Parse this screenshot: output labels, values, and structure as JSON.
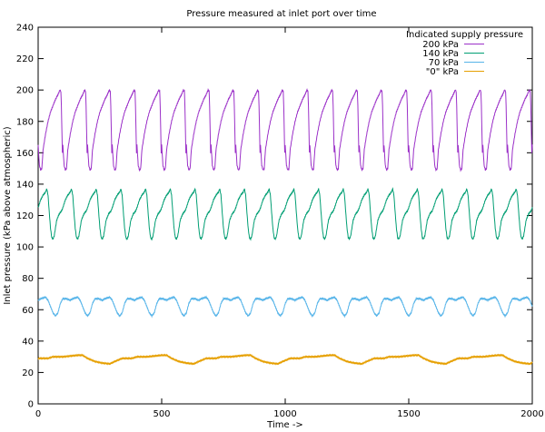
{
  "chart_data": {
    "type": "line",
    "title": "Pressure measured at inlet port over time",
    "xlabel": "Time ->",
    "ylabel": "Inlet pressure (kPa above atmospheric)",
    "xlim": [
      0,
      2000
    ],
    "ylim": [
      0,
      240
    ],
    "xticks": [
      0,
      500,
      1000,
      1500,
      2000
    ],
    "yticks": [
      0,
      20,
      40,
      60,
      80,
      100,
      120,
      140,
      160,
      180,
      200,
      220,
      240
    ],
    "grid": false,
    "legend": {
      "title": "Indicated supply pressure",
      "placement": "top-right"
    },
    "series": [
      {
        "name": "200 kPa",
        "color": "#9b30c8",
        "period": 100,
        "phase": 0,
        "points": [
          [
            0,
            165
          ],
          [
            5,
            152
          ],
          [
            10,
            149
          ],
          [
            15,
            150
          ],
          [
            20,
            162
          ],
          [
            30,
            172
          ],
          [
            40,
            180
          ],
          [
            50,
            186
          ],
          [
            60,
            190
          ],
          [
            70,
            194
          ],
          [
            80,
            197
          ],
          [
            88,
            200
          ],
          [
            92,
            199
          ],
          [
            94,
            190
          ],
          [
            96,
            175
          ],
          [
            98,
            160
          ],
          [
            100,
            165
          ]
        ]
      },
      {
        "name": "140 kPa",
        "color": "#009e73",
        "period": 100,
        "phase": 0,
        "points": [
          [
            0,
            125
          ],
          [
            10,
            130
          ],
          [
            20,
            133
          ],
          [
            30,
            135
          ],
          [
            35,
            137
          ],
          [
            40,
            133
          ],
          [
            45,
            122
          ],
          [
            50,
            112
          ],
          [
            55,
            106
          ],
          [
            60,
            105
          ],
          [
            65,
            107
          ],
          [
            75,
            117
          ],
          [
            85,
            121
          ],
          [
            95,
            123
          ],
          [
            100,
            125
          ]
        ]
      },
      {
        "name": "70 kPa",
        "color": "#56b4e9",
        "period": 130,
        "phase": 0,
        "points": [
          [
            0,
            66
          ],
          [
            10,
            67
          ],
          [
            30,
            68
          ],
          [
            40,
            66
          ],
          [
            50,
            62
          ],
          [
            60,
            58
          ],
          [
            70,
            56
          ],
          [
            80,
            58
          ],
          [
            90,
            64
          ],
          [
            100,
            67
          ],
          [
            115,
            67
          ],
          [
            130,
            66
          ]
        ]
      },
      {
        "name": "\"0\" kPa",
        "color": "#e69f00",
        "period": 340,
        "phase": 0,
        "points": [
          [
            0,
            29
          ],
          [
            40,
            29
          ],
          [
            60,
            30
          ],
          [
            100,
            30
          ],
          [
            160,
            31
          ],
          [
            180,
            31
          ],
          [
            200,
            29
          ],
          [
            230,
            27
          ],
          [
            260,
            26
          ],
          [
            290,
            25.5
          ],
          [
            310,
            27
          ],
          [
            340,
            29
          ]
        ]
      }
    ]
  }
}
